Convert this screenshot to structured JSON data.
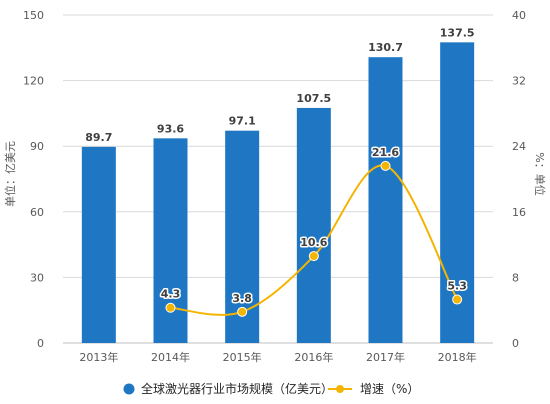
{
  "chart_data": {
    "type": "bar",
    "categories": [
      "2013年",
      "2014年",
      "2015年",
      "2016年",
      "2017年",
      "2018年"
    ],
    "series": [
      {
        "name": "全球激光器行业市场规模（亿美元）",
        "type": "bar",
        "axis": "left",
        "color": "#1F77C4",
        "values": [
          89.7,
          93.6,
          97.1,
          107.5,
          130.7,
          137.5
        ]
      },
      {
        "name": "增速（%）",
        "type": "line",
        "axis": "right",
        "color": "#F5B400",
        "smooth": true,
        "values": [
          null,
          4.3,
          3.8,
          10.6,
          21.6,
          5.3
        ]
      }
    ],
    "ylabel": "单位：亿美元",
    "y2label": "%：单位",
    "ylim": [
      0,
      150
    ],
    "yticks": [
      0,
      30,
      60,
      90,
      120,
      150
    ],
    "y2lim": [
      0,
      40
    ],
    "y2ticks": [
      0,
      8,
      16,
      24,
      32,
      40
    ],
    "grid": true,
    "legend": "bottom"
  }
}
